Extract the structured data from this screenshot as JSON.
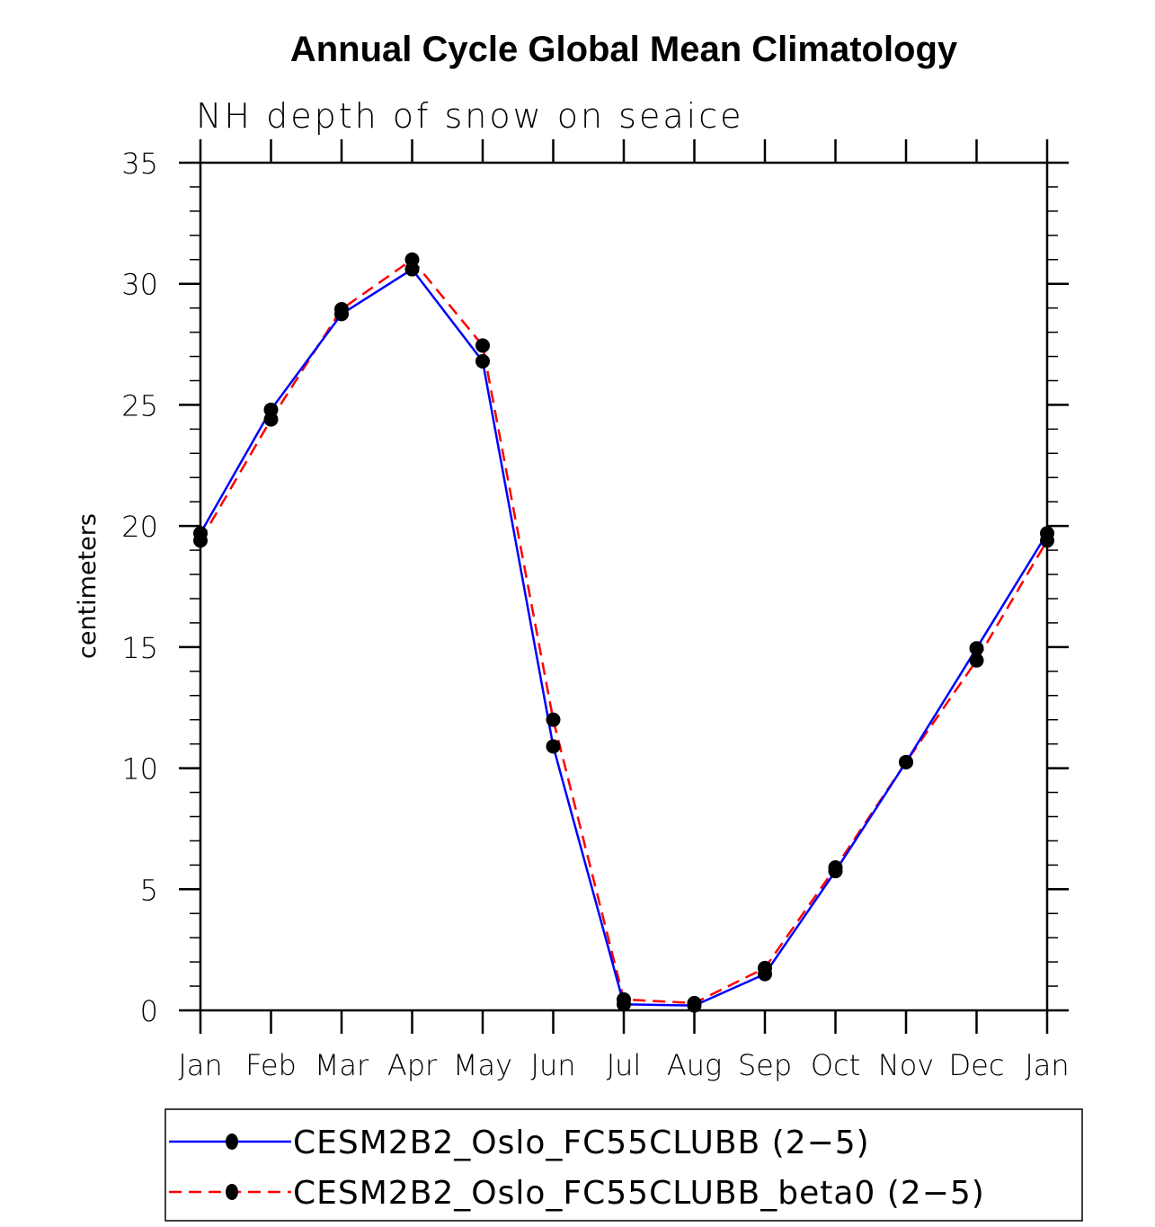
{
  "chart_data": {
    "type": "line",
    "title": "Annual Cycle Global Mean Climatology",
    "subtitle": "NH depth of snow on seaice",
    "xlabel": "",
    "ylabel": "centimeters",
    "categories": [
      "Jan",
      "Feb",
      "Mar",
      "Apr",
      "May",
      "Jun",
      "Jul",
      "Aug",
      "Sep",
      "Oct",
      "Nov",
      "Dec",
      "Jan"
    ],
    "ylim": [
      0,
      35
    ],
    "yticks": [
      0,
      5,
      10,
      15,
      20,
      25,
      30,
      35
    ],
    "grid": false,
    "legend_position": "bottom",
    "series": [
      {
        "name": "CESM2B2_Oslo_FC55CLUBB (2−5)",
        "color": "#0000ff",
        "dash": "solid",
        "marker": "filled-circle",
        "values": [
          19.7,
          24.8,
          28.75,
          30.6,
          26.8,
          10.9,
          0.25,
          0.2,
          1.5,
          5.75,
          10.25,
          14.95,
          19.7
        ]
      },
      {
        "name": "CESM2B2_Oslo_FC55CLUBB_beta0 (2−5)",
        "color": "#ff0000",
        "dash": "dashed",
        "marker": "filled-circle",
        "values": [
          19.4,
          24.4,
          28.95,
          31.0,
          27.45,
          12.0,
          0.45,
          0.3,
          1.75,
          5.9,
          10.25,
          14.45,
          19.4
        ]
      }
    ]
  }
}
